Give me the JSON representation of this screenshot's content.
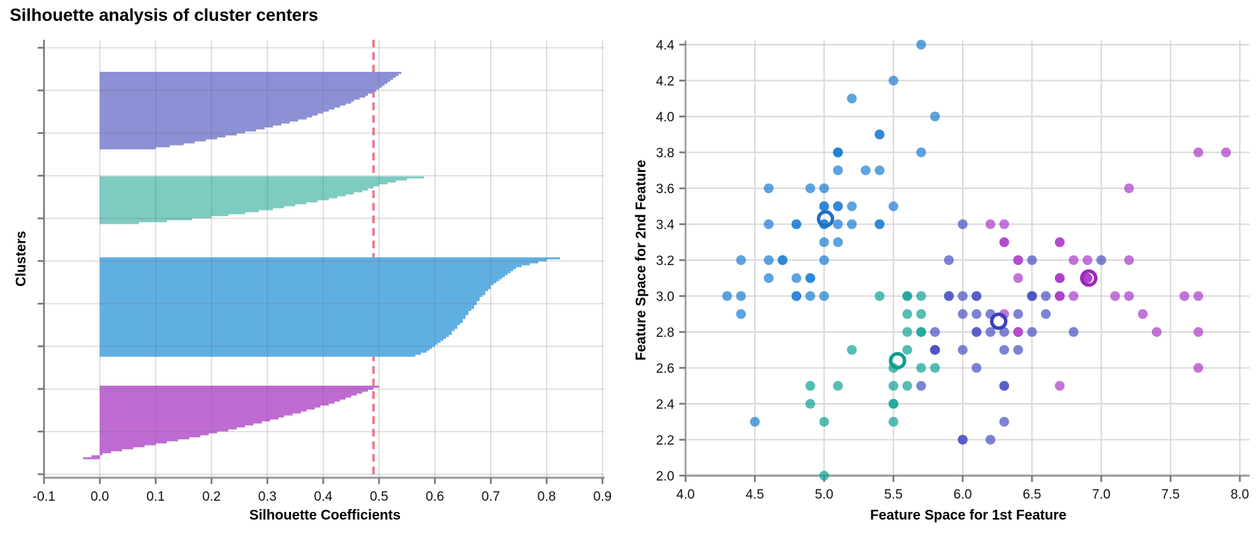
{
  "figure_title": "Silhouette analysis of cluster centers",
  "colors": {
    "background": "#ffffff",
    "grid": "#d9d9d9",
    "grid_overlay": "#6b6b6b",
    "axis": "#9a9a9a",
    "yaxis_left_chart": "#7a7a7a",
    "tick": "#777777",
    "text": "#000000",
    "dashed_line": "#ee7584"
  },
  "chart_data": [
    {
      "type": "area",
      "id": "silhouette-plot",
      "title": "Silhouette analysis of cluster centers",
      "xlabel": "Silhouette Coefficients",
      "ylabel": "Clusters",
      "xlim": [
        -0.1,
        0.9
      ],
      "x_ticks": [
        "-0.1",
        "0.0",
        "0.1",
        "0.2",
        "0.3",
        "0.4",
        "0.5",
        "0.6",
        "0.7",
        "0.8",
        "0.9"
      ],
      "grid": true,
      "avg_silhouette_line": 0.49,
      "clusters": [
        {
          "name": "cluster-purple",
          "color": "#8c90d4",
          "size": 39,
          "values": [
            0.54,
            0.535,
            0.53,
            0.525,
            0.52,
            0.515,
            0.51,
            0.505,
            0.5,
            0.495,
            0.49,
            0.48,
            0.475,
            0.465,
            0.455,
            0.45,
            0.44,
            0.43,
            0.42,
            0.41,
            0.4,
            0.39,
            0.38,
            0.37,
            0.355,
            0.34,
            0.325,
            0.31,
            0.295,
            0.28,
            0.26,
            0.245,
            0.225,
            0.21,
            0.19,
            0.17,
            0.15,
            0.125,
            0.1
          ]
        },
        {
          "name": "cluster-teal",
          "color": "#7ecbc2",
          "size": 24,
          "values": [
            0.58,
            0.55,
            0.53,
            0.515,
            0.5,
            0.49,
            0.48,
            0.47,
            0.455,
            0.44,
            0.425,
            0.41,
            0.39,
            0.37,
            0.35,
            0.33,
            0.31,
            0.285,
            0.26,
            0.23,
            0.2,
            0.165,
            0.12,
            0.07
          ]
        },
        {
          "name": "cluster-blue",
          "color": "#5fafe3",
          "size": 50,
          "values": [
            0.824,
            0.8,
            0.785,
            0.77,
            0.755,
            0.745,
            0.74,
            0.735,
            0.73,
            0.725,
            0.72,
            0.715,
            0.71,
            0.705,
            0.7,
            0.7,
            0.695,
            0.69,
            0.69,
            0.685,
            0.68,
            0.68,
            0.675,
            0.675,
            0.67,
            0.67,
            0.665,
            0.66,
            0.66,
            0.655,
            0.655,
            0.65,
            0.65,
            0.645,
            0.64,
            0.64,
            0.635,
            0.63,
            0.63,
            0.625,
            0.62,
            0.615,
            0.61,
            0.605,
            0.6,
            0.595,
            0.59,
            0.585,
            0.575,
            0.565
          ]
        },
        {
          "name": "cluster-magenta",
          "color": "#bf6bd2",
          "size": 37,
          "values": [
            0.5,
            0.49,
            0.48,
            0.47,
            0.46,
            0.45,
            0.44,
            0.43,
            0.42,
            0.41,
            0.395,
            0.385,
            0.37,
            0.36,
            0.345,
            0.33,
            0.32,
            0.305,
            0.29,
            0.275,
            0.26,
            0.245,
            0.23,
            0.21,
            0.195,
            0.18,
            0.16,
            0.14,
            0.12,
            0.1,
            0.08,
            0.06,
            0.04,
            0.02,
            0.005,
            -0.015,
            -0.03
          ]
        }
      ]
    },
    {
      "type": "scatter",
      "id": "feature-space-plot",
      "xlabel": "Feature Space for 1st Feature",
      "ylabel": "Feature Space for 2nd Feature",
      "xlim": [
        4.0,
        8.07
      ],
      "ylim": [
        2.0,
        4.43
      ],
      "x_ticks": [
        "4.0",
        "4.5",
        "5.0",
        "5.5",
        "6.0",
        "6.5",
        "7.0",
        "7.5",
        "8.0"
      ],
      "y_ticks": [
        "2.0",
        "2.2",
        "2.4",
        "2.6",
        "2.8",
        "3.0",
        "3.2",
        "3.4",
        "3.6",
        "3.8",
        "4.0",
        "4.2",
        "4.4"
      ],
      "grid": true,
      "point_radius": 7,
      "point_opacity": 0.72,
      "clusters": [
        {
          "name": "cluster-purple",
          "color": "#4b52c4",
          "center_color": "#3a41b8",
          "center": [
            6.26,
            2.86
          ],
          "points": [
            [
              7.0,
              3.2
            ],
            [
              6.5,
              2.8
            ],
            [
              5.9,
              3.0
            ],
            [
              6.0,
              2.2
            ],
            [
              6.1,
              2.9
            ],
            [
              5.8,
              2.7
            ],
            [
              5.8,
              2.7
            ],
            [
              6.2,
              2.2
            ],
            [
              5.9,
              3.2
            ],
            [
              6.1,
              2.8
            ],
            [
              6.1,
              2.8
            ],
            [
              6.3,
              2.5
            ],
            [
              6.4,
              2.9
            ],
            [
              6.6,
              3.0
            ],
            [
              6.8,
              2.8
            ],
            [
              6.0,
              2.9
            ],
            [
              6.0,
              2.7
            ],
            [
              6.0,
              3.4
            ],
            [
              6.3,
              2.3
            ],
            [
              6.1,
              3.0
            ],
            [
              6.6,
              2.9
            ],
            [
              6.2,
              2.9
            ],
            [
              5.8,
              2.7
            ],
            [
              6.5,
              3.0
            ],
            [
              6.5,
              3.0
            ],
            [
              6.5,
              3.0
            ],
            [
              6.4,
              2.7
            ],
            [
              5.7,
              2.5
            ],
            [
              5.8,
              2.8
            ],
            [
              6.5,
              3.2
            ],
            [
              6.0,
              2.2
            ],
            [
              6.3,
              2.7
            ],
            [
              6.2,
              2.8
            ],
            [
              6.1,
              3.0
            ],
            [
              6.3,
              2.8
            ],
            [
              6.1,
              2.6
            ],
            [
              6.0,
              3.0
            ],
            [
              6.3,
              2.5
            ],
            [
              5.9,
              3.0
            ]
          ]
        },
        {
          "name": "cluster-teal",
          "color": "#14a396",
          "center_color": "#0f9c8f",
          "center": [
            5.53,
            2.64
          ],
          "points": [
            [
              5.5,
              2.3
            ],
            [
              5.7,
              2.8
            ],
            [
              4.9,
              2.4
            ],
            [
              5.2,
              2.7
            ],
            [
              5.0,
              2.0
            ],
            [
              5.6,
              2.9
            ],
            [
              5.6,
              3.0
            ],
            [
              5.6,
              2.5
            ],
            [
              5.7,
              2.6
            ],
            [
              5.5,
              2.4
            ],
            [
              5.5,
              2.4
            ],
            [
              5.4,
              3.0
            ],
            [
              5.6,
              3.0
            ],
            [
              5.5,
              2.5
            ],
            [
              5.5,
              2.6
            ],
            [
              5.8,
              2.6
            ],
            [
              5.0,
              2.3
            ],
            [
              5.6,
              2.7
            ],
            [
              5.7,
              3.0
            ],
            [
              5.7,
              2.9
            ],
            [
              5.1,
              2.5
            ],
            [
              5.7,
              2.8
            ],
            [
              4.9,
              2.5
            ],
            [
              5.6,
              2.8
            ]
          ]
        },
        {
          "name": "cluster-blue",
          "color": "#1f7fd4",
          "center_color": "#1d6fc4",
          "center": [
            5.01,
            3.43
          ],
          "points": [
            [
              5.1,
              3.5
            ],
            [
              4.9,
              3.0
            ],
            [
              4.7,
              3.2
            ],
            [
              4.6,
              3.1
            ],
            [
              5.0,
              3.6
            ],
            [
              5.4,
              3.9
            ],
            [
              4.6,
              3.4
            ],
            [
              5.0,
              3.4
            ],
            [
              4.4,
              2.9
            ],
            [
              4.9,
              3.1
            ],
            [
              5.4,
              3.7
            ],
            [
              4.8,
              3.4
            ],
            [
              4.8,
              3.0
            ],
            [
              4.3,
              3.0
            ],
            [
              5.8,
              4.0
            ],
            [
              5.7,
              4.4
            ],
            [
              5.4,
              3.9
            ],
            [
              5.1,
              3.5
            ],
            [
              5.7,
              3.8
            ],
            [
              5.1,
              3.8
            ],
            [
              5.4,
              3.4
            ],
            [
              5.1,
              3.7
            ],
            [
              4.6,
              3.6
            ],
            [
              5.1,
              3.3
            ],
            [
              4.8,
              3.4
            ],
            [
              5.0,
              3.0
            ],
            [
              5.0,
              3.4
            ],
            [
              5.2,
              3.5
            ],
            [
              5.2,
              3.4
            ],
            [
              4.7,
              3.2
            ],
            [
              4.8,
              3.1
            ],
            [
              5.4,
              3.4
            ],
            [
              5.2,
              4.1
            ],
            [
              5.5,
              4.2
            ],
            [
              4.9,
              3.1
            ],
            [
              5.0,
              3.2
            ],
            [
              5.5,
              3.5
            ],
            [
              4.9,
              3.6
            ],
            [
              4.4,
              3.0
            ],
            [
              5.1,
              3.4
            ],
            [
              5.0,
              3.5
            ],
            [
              4.5,
              2.3
            ],
            [
              4.4,
              3.2
            ],
            [
              5.0,
              3.5
            ],
            [
              5.1,
              3.8
            ],
            [
              4.8,
              3.0
            ],
            [
              5.1,
              3.8
            ],
            [
              4.6,
              3.2
            ],
            [
              5.3,
              3.7
            ],
            [
              5.0,
              3.3
            ]
          ]
        },
        {
          "name": "cluster-magenta",
          "color": "#ad3ec9",
          "center_color": "#9c27bd",
          "center": [
            6.91,
            3.1
          ],
          "points": [
            [
              6.4,
              3.2
            ],
            [
              6.9,
              3.1
            ],
            [
              6.3,
              3.3
            ],
            [
              6.7,
              3.1
            ],
            [
              6.7,
              3.1
            ],
            [
              6.7,
              3.0
            ],
            [
              6.3,
              3.3
            ],
            [
              7.1,
              3.0
            ],
            [
              6.3,
              2.9
            ],
            [
              7.6,
              3.0
            ],
            [
              7.3,
              2.9
            ],
            [
              6.7,
              2.5
            ],
            [
              7.2,
              3.6
            ],
            [
              6.8,
              3.0
            ],
            [
              6.4,
              3.2
            ],
            [
              7.7,
              3.8
            ],
            [
              7.7,
              2.6
            ],
            [
              6.9,
              3.2
            ],
            [
              7.7,
              2.8
            ],
            [
              7.2,
              3.2
            ],
            [
              6.4,
              2.8
            ],
            [
              7.2,
              3.0
            ],
            [
              7.4,
              2.8
            ],
            [
              7.9,
              3.8
            ],
            [
              6.4,
              2.8
            ],
            [
              7.7,
              3.0
            ],
            [
              6.3,
              3.4
            ],
            [
              6.4,
              3.1
            ],
            [
              6.9,
              3.1
            ],
            [
              6.9,
              3.1
            ],
            [
              6.7,
              3.1
            ],
            [
              6.8,
              3.2
            ],
            [
              6.7,
              3.3
            ],
            [
              6.7,
              3.3
            ],
            [
              6.7,
              3.0
            ],
            [
              6.7,
              3.0
            ],
            [
              6.2,
              3.4
            ]
          ]
        }
      ]
    }
  ]
}
